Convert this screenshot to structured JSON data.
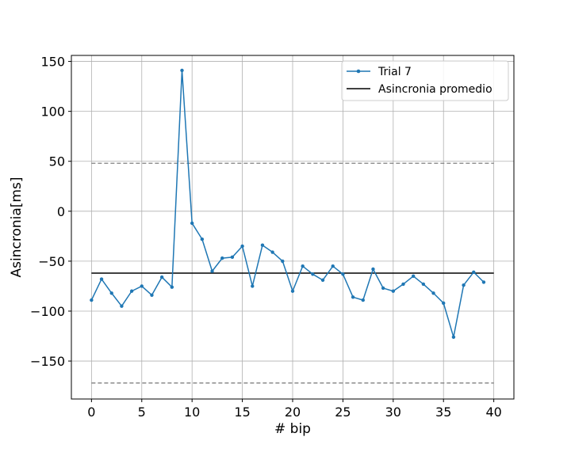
{
  "chart_data": {
    "type": "line",
    "title": "",
    "xlabel": "# bip",
    "ylabel": "Asincronia[ms]",
    "xlim": [
      -2,
      42
    ],
    "ylim": [
      -188,
      156
    ],
    "xticks": [
      0,
      5,
      10,
      15,
      20,
      25,
      30,
      35,
      40
    ],
    "yticks": [
      -150,
      -100,
      -50,
      0,
      50,
      100,
      150
    ],
    "xtick_labels": [
      "0",
      "5",
      "10",
      "15",
      "20",
      "25",
      "30",
      "35",
      "40"
    ],
    "ytick_labels": [
      "−150",
      "−100",
      "−50",
      "0",
      "50",
      "100",
      "150"
    ],
    "grid": true,
    "legend_position": "top-right",
    "series": [
      {
        "name": "Trial 7",
        "color": "#1f77b4",
        "marker": "point",
        "x": [
          0,
          1,
          2,
          3,
          4,
          5,
          6,
          7,
          8,
          9,
          10,
          11,
          12,
          13,
          14,
          15,
          16,
          17,
          18,
          19,
          20,
          21,
          22,
          23,
          24,
          25,
          26,
          27,
          28,
          29,
          30,
          31,
          32,
          33,
          34,
          35,
          36,
          37,
          38,
          39
        ],
        "y": [
          -89,
          -68,
          -82,
          -95,
          -80,
          -75,
          -84,
          -66,
          -76,
          141,
          -12,
          -28,
          -60,
          -47,
          -46,
          -35,
          -75,
          -34,
          -41,
          -50,
          -80,
          -55,
          -63,
          -69,
          -55,
          -63,
          -86,
          -89,
          -58,
          -77,
          -80,
          -73,
          -65,
          -73,
          -82,
          -92,
          -126,
          -74,
          -61,
          -71
        ]
      }
    ],
    "reference_lines": [
      {
        "name": "Asincronia promedio",
        "y": -62,
        "x_range": [
          0,
          40
        ],
        "color": "#000000",
        "style": "solid"
      },
      {
        "y": 48,
        "x_range": [
          0,
          40
        ],
        "color": "#808080",
        "style": "dashed"
      },
      {
        "y": -172,
        "x_range": [
          0,
          40
        ],
        "color": "#808080",
        "style": "dashed"
      }
    ]
  }
}
